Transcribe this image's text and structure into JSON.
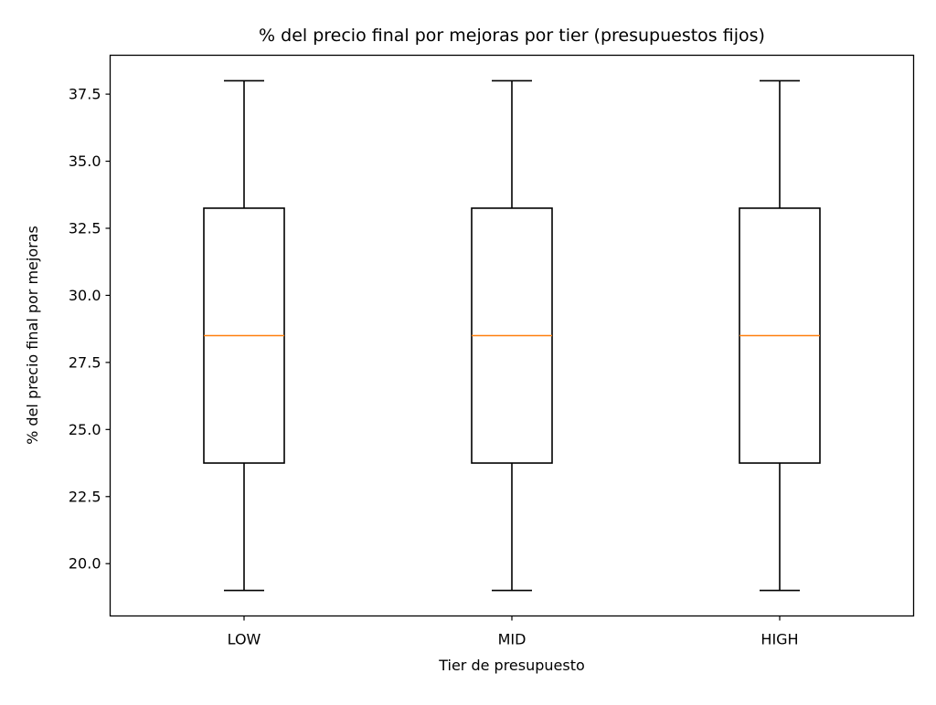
{
  "chart_data": {
    "type": "boxplot",
    "title": "% del precio final por mejoras por tier (presupuestos fijos)",
    "xlabel": "Tier de presupuesto",
    "ylabel": "% del precio final por mejoras",
    "ylim": [
      18.05,
      38.95
    ],
    "yticks": [
      20.0,
      22.5,
      25.0,
      27.5,
      30.0,
      32.5,
      35.0,
      37.5
    ],
    "ytick_labels": [
      "20.0",
      "22.5",
      "25.0",
      "27.5",
      "30.0",
      "32.5",
      "35.0",
      "37.5"
    ],
    "grid": false,
    "categories": [
      "LOW",
      "MID",
      "HIGH"
    ],
    "boxes": [
      {
        "category": "LOW",
        "whisker_low": 19.0,
        "q1": 23.75,
        "median": 28.5,
        "q3": 33.25,
        "whisker_high": 38.0
      },
      {
        "category": "MID",
        "whisker_low": 19.0,
        "q1": 23.75,
        "median": 28.5,
        "q3": 33.25,
        "whisker_high": 38.0
      },
      {
        "category": "HIGH",
        "whisker_low": 19.0,
        "q1": 23.75,
        "median": 28.5,
        "q3": 33.25,
        "whisker_high": 38.0
      }
    ],
    "colors": {
      "box": "#000000",
      "median": "#ff7f0e",
      "axes": "#000000",
      "background": "#ffffff"
    }
  }
}
